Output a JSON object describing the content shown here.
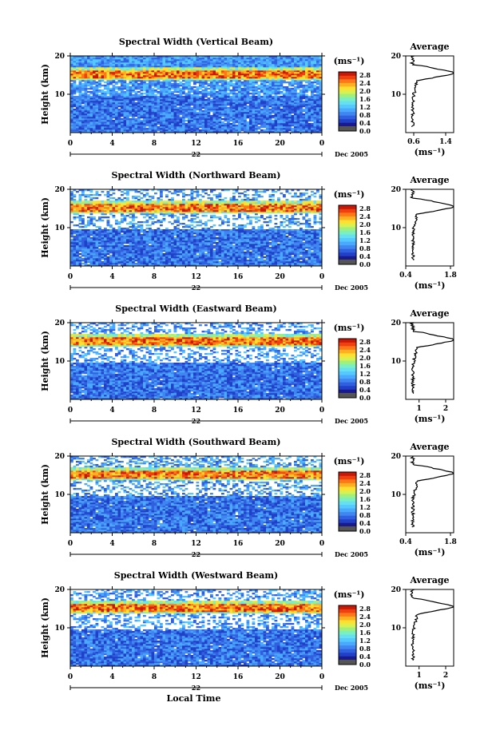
{
  "chart_data": [
    {
      "type": "heatmap",
      "title": "Spectral Width (Vertical Beam)",
      "ylabel": "Height (km)",
      "xlabel": "",
      "x_ticks": [
        "0",
        "4",
        "8",
        "12",
        "16",
        "20",
        "0"
      ],
      "y_ticks": [
        "20",
        "10"
      ],
      "date_day": "22",
      "date_label": "Dec 2005",
      "colorbar_unit": "(ms⁻¹)",
      "colorbar_ticks": [
        "2.8",
        "2.4",
        "2.0",
        "1.6",
        "1.2",
        "0.8",
        "0.4",
        "0.0"
      ],
      "profile_title": "Average",
      "profile_unit": "(ms⁻¹)",
      "profile_x_ticks": [
        "0.6",
        "1.4"
      ],
      "profile_y_ticks": [
        "20",
        "10"
      ],
      "profile_xlim": [
        0.4,
        1.6
      ],
      "tropo_height": 15.5
    },
    {
      "type": "heatmap",
      "title": "Spectral Width (Northward Beam)",
      "ylabel": "Height (km)",
      "xlabel": "",
      "x_ticks": [
        "0",
        "4",
        "8",
        "12",
        "16",
        "20",
        "0"
      ],
      "y_ticks": [
        "20",
        "10"
      ],
      "date_day": "22",
      "date_label": "Dec 2005",
      "colorbar_unit": "(ms⁻¹)",
      "colorbar_ticks": [
        "2.8",
        "2.4",
        "2.0",
        "1.6",
        "1.2",
        "0.8",
        "0.4",
        "0.0"
      ],
      "profile_title": "Average",
      "profile_unit": "(ms⁻¹)",
      "profile_x_ticks": [
        "0.4",
        "1.8"
      ],
      "profile_y_ticks": [
        "20",
        "10"
      ],
      "profile_xlim": [
        0.4,
        1.9
      ],
      "tropo_height": 15.5
    },
    {
      "type": "heatmap",
      "title": "Spectral Width (Eastward Beam)",
      "ylabel": "Height (km)",
      "xlabel": "",
      "x_ticks": [
        "0",
        "4",
        "8",
        "12",
        "16",
        "20",
        "0"
      ],
      "y_ticks": [
        "20",
        "10"
      ],
      "date_day": "22",
      "date_label": "Dec 2005",
      "colorbar_unit": "(ms⁻¹)",
      "colorbar_ticks": [
        "2.8",
        "2.4",
        "2.0",
        "1.6",
        "1.2",
        "0.8",
        "0.4",
        "0.0"
      ],
      "profile_title": "Average",
      "profile_unit": "(ms⁻¹)",
      "profile_x_ticks": [
        "1",
        "2"
      ],
      "profile_y_ticks": [
        "20",
        "10"
      ],
      "profile_xlim": [
        0.5,
        2.3
      ],
      "tropo_height": 15.5
    },
    {
      "type": "heatmap",
      "title": "Spectral Width (Southward Beam)",
      "ylabel": "Height (km)",
      "xlabel": "",
      "x_ticks": [
        "0",
        "4",
        "8",
        "12",
        "16",
        "20",
        "0"
      ],
      "y_ticks": [
        "20",
        "10"
      ],
      "date_day": "22",
      "date_label": "Dec 2005",
      "colorbar_unit": "(ms⁻¹)",
      "colorbar_ticks": [
        "2.8",
        "2.4",
        "2.0",
        "1.6",
        "1.2",
        "0.8",
        "0.4",
        "0.0"
      ],
      "profile_title": "Average",
      "profile_unit": "(ms⁻¹)",
      "profile_x_ticks": [
        "0.4",
        "1.8"
      ],
      "profile_y_ticks": [
        "20",
        "10"
      ],
      "profile_xlim": [
        0.4,
        1.9
      ],
      "tropo_height": 15.5
    },
    {
      "type": "heatmap",
      "title": "Spectral Width (Westward Beam)",
      "ylabel": "Height (km)",
      "xlabel": "Local Time",
      "x_ticks": [
        "0",
        "4",
        "8",
        "12",
        "16",
        "20",
        "0"
      ],
      "y_ticks": [
        "20",
        "10"
      ],
      "date_day": "22",
      "date_label": "Dec 2005",
      "colorbar_unit": "(ms⁻¹)",
      "colorbar_ticks": [
        "2.8",
        "2.4",
        "2.0",
        "1.6",
        "1.2",
        "0.8",
        "0.4",
        "0.0"
      ],
      "profile_title": "Average",
      "profile_unit": "(ms⁻¹)",
      "profile_x_ticks": [
        "1",
        "2"
      ],
      "profile_y_ticks": [
        "20",
        "10"
      ],
      "profile_xlim": [
        0.5,
        2.3
      ],
      "tropo_height": 15.5
    }
  ],
  "colors": {
    "colormap": [
      "#1a1a8c",
      "#2040c8",
      "#3060e0",
      "#3f86f0",
      "#4aa8ff",
      "#55c8ff",
      "#66e0f0",
      "#7af0c0",
      "#a0f080",
      "#d8f050",
      "#ffe030",
      "#ffb020",
      "#ff7818",
      "#f04010",
      "#c81808"
    ],
    "bar_bottom": "#555555"
  }
}
